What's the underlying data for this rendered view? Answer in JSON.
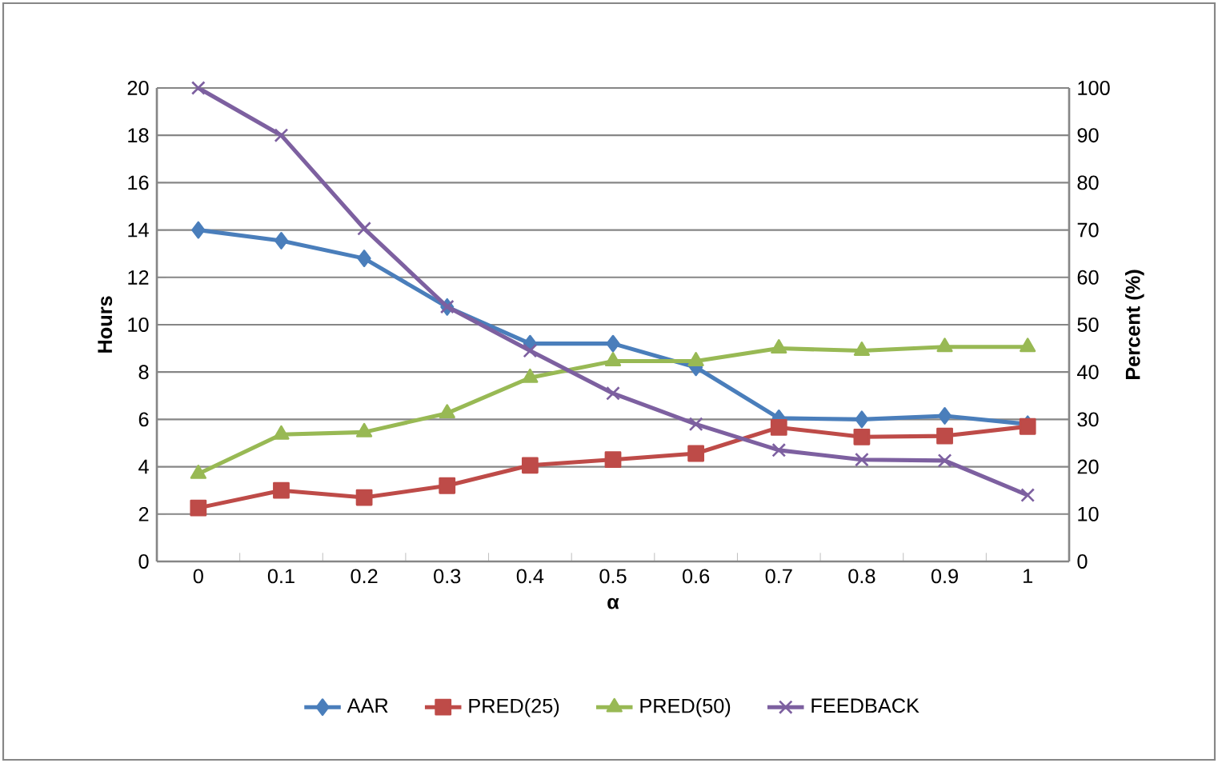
{
  "chart_data": {
    "type": "line",
    "xlabel": "α",
    "ylabel": "Hours",
    "y2label": "Percent (%)",
    "categories": [
      "0",
      "0.1",
      "0.2",
      "0.3",
      "0.4",
      "0.5",
      "0.6",
      "0.7",
      "0.8",
      "0.9",
      "1"
    ],
    "ylim": [
      0,
      20
    ],
    "yticks": [
      0,
      2,
      4,
      6,
      8,
      10,
      12,
      14,
      16,
      18,
      20
    ],
    "y2lim": [
      0,
      100
    ],
    "y2ticks": [
      0,
      10,
      20,
      30,
      40,
      50,
      60,
      70,
      80,
      90,
      100
    ],
    "grid": "y",
    "legend": "bottom",
    "series": [
      {
        "name": "AAR",
        "color": "#4a7ebb",
        "marker": "diamond",
        "values": [
          14.0,
          13.55,
          12.8,
          10.75,
          9.2,
          9.2,
          8.2,
          6.05,
          6.0,
          6.15,
          5.8
        ]
      },
      {
        "name": "PRED(25)",
        "color": "#be4b48",
        "marker": "square",
        "axis": "y2",
        "values": [
          11.3,
          15,
          13.5,
          16,
          20.3,
          21.5,
          22.8,
          28.3,
          26.3,
          26.5,
          28.5
        ]
      },
      {
        "name": "PRED(50)",
        "color": "#98b954",
        "marker": "triangle",
        "axis": "y2",
        "values": [
          18.5,
          26.8,
          27.3,
          31.3,
          38.8,
          42.3,
          42.3,
          45,
          44.5,
          45.3,
          45.3
        ]
      },
      {
        "name": "FEEDBACK",
        "color": "#7d60a0",
        "marker": "cross",
        "axis": "y2",
        "values": [
          100,
          90,
          70.3,
          53.8,
          44.5,
          35.5,
          29,
          23.5,
          21.5,
          21.3,
          14
        ]
      }
    ]
  }
}
